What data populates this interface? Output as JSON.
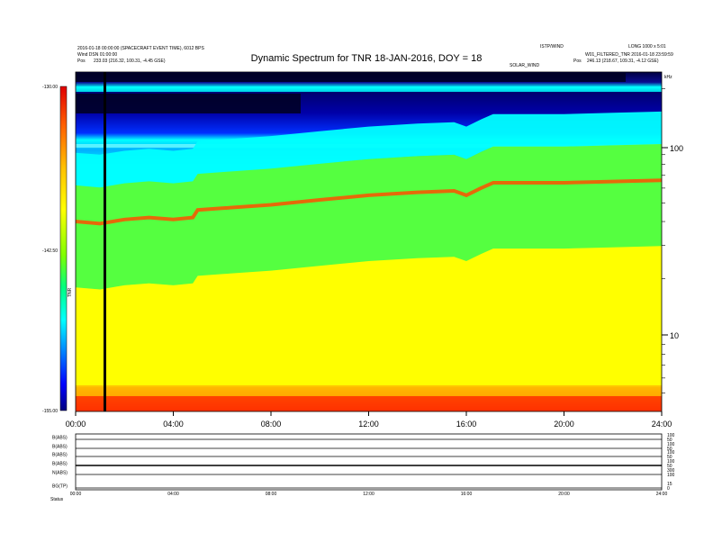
{
  "header": {
    "title": "Dynamic Spectrum for TNR 18-JAN-2016, DOY = 18",
    "left_line1": "2016-01-18 00:00:00 (SPACECRAFT EVENT TIME), 6012 BPS",
    "left_line2": "Wind DSN 01:00:00",
    "left_pos_label": "Pos",
    "left_pos_value": "233.03 (216.32, 100.31, -4.45 GSE)",
    "right_line1": "ISTP/WIND",
    "right_line2": "W01_FILTERED_TNR 2016-01-18 23:59:59",
    "right_pos_label": "Pos",
    "right_pos_value": "246.13 (218.67, 109.31, -4.12 GSE)",
    "left_corner_label": "LONG 1000 x 5:01",
    "right_corner_label": "SOLAR_WIND",
    "freq_axis_unit": "kHz"
  },
  "colorbar": {
    "ticks": [
      "-130.00",
      "-142.50",
      "-155.00"
    ],
    "mid_label": "TNR"
  },
  "chart_data": {
    "type": "heatmap",
    "title": "Dynamic Spectrum for TNR 18-JAN-2016, DOY = 18",
    "x_range_hours": [
      0,
      24
    ],
    "x_ticks": [
      "00:00",
      "04:00",
      "08:00",
      "12:00",
      "16:00",
      "20:00",
      "24:00"
    ],
    "y_scale": "log",
    "y_range_khz": [
      4,
      245
    ],
    "y_ticks": [
      "100",
      "10"
    ],
    "colorbar_range": [
      -155.0,
      -130.0
    ],
    "colormap": [
      "#00008c",
      "#0000ff",
      "#00c8ff",
      "#00ffff",
      "#00ff00",
      "#ffff00",
      "#ff8000",
      "#ff0000",
      "#e00000"
    ],
    "plasma_line_khz": [
      [
        0,
        40
      ],
      [
        1,
        39
      ],
      [
        2,
        41
      ],
      [
        3,
        42
      ],
      [
        4,
        41
      ],
      [
        4.8,
        42
      ],
      [
        5,
        46
      ],
      [
        6,
        47
      ],
      [
        8,
        49
      ],
      [
        10,
        52
      ],
      [
        12,
        55
      ],
      [
        14,
        57
      ],
      [
        15.5,
        58
      ],
      [
        16,
        55
      ],
      [
        16.6,
        60
      ],
      [
        17.1,
        64
      ],
      [
        18,
        64
      ],
      [
        20,
        64
      ],
      [
        22,
        65
      ],
      [
        24,
        66
      ]
    ],
    "black_stripe_hour": 1.2,
    "lower_panels": {
      "x_ticks": [
        "00:00",
        "04:00",
        "08:00",
        "12:00",
        "16:00",
        "20:00",
        "24:00"
      ],
      "rows": [
        {
          "label": "B(ABS)",
          "right_ticks": [
            "100",
            "50"
          ]
        },
        {
          "label": "B(ABS)",
          "right_ticks": [
            "100",
            "50"
          ]
        },
        {
          "label": "B(ABS)",
          "right_ticks": [
            "100",
            "50"
          ]
        },
        {
          "label": "B(ABS)",
          "right_ticks": [
            "100",
            "50"
          ]
        },
        {
          "label": "N(ABS)",
          "right_ticks": [
            "300",
            "100"
          ]
        },
        {
          "label": "BG(TP)",
          "right_ticks": [
            "15",
            "0"
          ]
        }
      ],
      "footer_label": "Status"
    }
  }
}
